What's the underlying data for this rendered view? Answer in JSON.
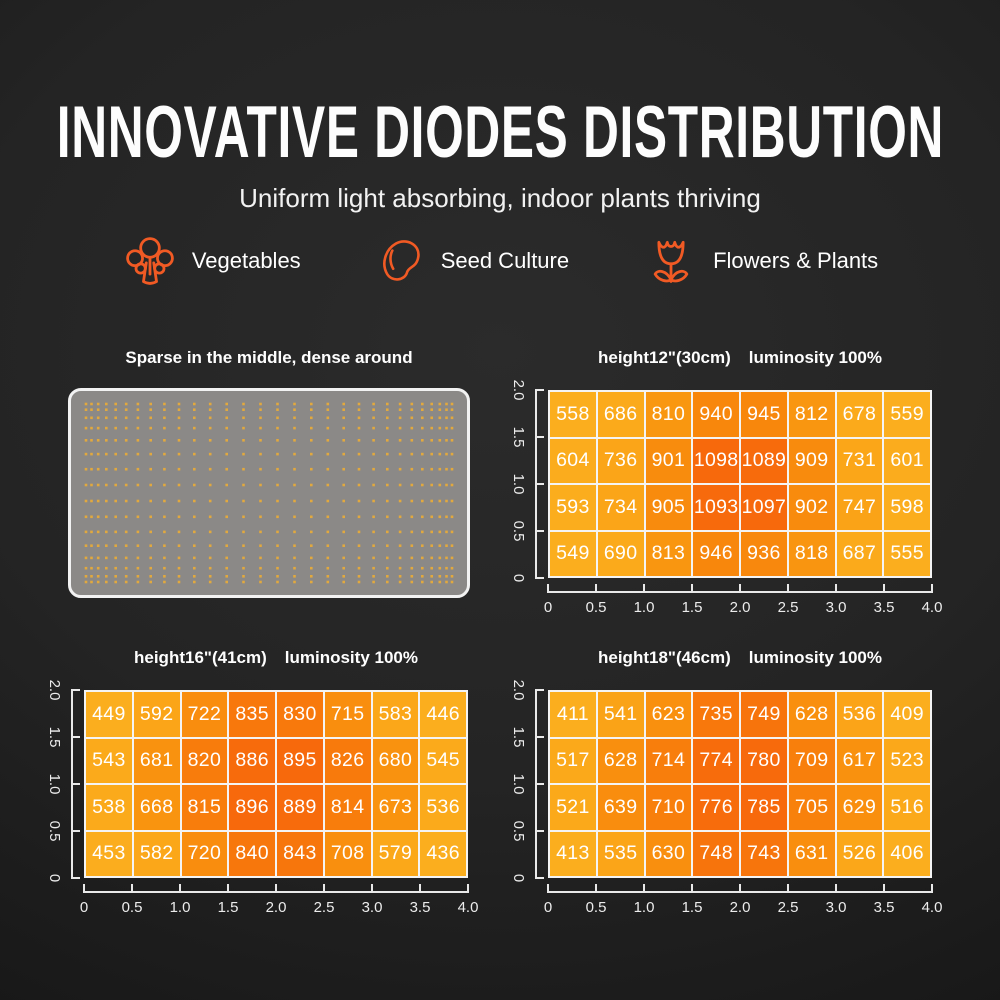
{
  "theme": {
    "accent_orange": "#F15A24",
    "cell_text": "#FFFFFF",
    "grid_line": "#F4F4F4",
    "board_bg": "#8B8987",
    "board_border": "#F2F2F2",
    "dot_color": "#E2A93E",
    "heat_stops": [
      [
        0,
        "#FBAE1E"
      ],
      [
        0.3,
        "#FBA91A"
      ],
      [
        0.5,
        "#F9940F"
      ],
      [
        0.75,
        "#F8850C"
      ],
      [
        1,
        "#F7690C"
      ]
    ]
  },
  "header": {
    "title": "INNOVATIVE DIODES DISTRIBUTION",
    "subtitle": "Uniform light absorbing, indoor plants thriving"
  },
  "features": [
    {
      "icon": "broccoli-icon",
      "label": "Vegetables"
    },
    {
      "icon": "seed-icon",
      "label": "Seed Culture"
    },
    {
      "icon": "tulip-icon",
      "label": "Flowers & Plants"
    }
  ],
  "board_panel": {
    "title": "Sparse in the middle, dense around"
  },
  "chart_data": [
    {
      "type": "heatmap",
      "title_height": "height12\"(30cm)",
      "title_lum": "luminosity 100%",
      "x_ticks": [
        "0",
        "0.5",
        "1.0",
        "1.5",
        "2.0",
        "2.5",
        "3.0",
        "3.5",
        "4.0"
      ],
      "y_ticks": [
        "2.0",
        "1.5",
        "1.0",
        "0.5",
        "0"
      ],
      "x_range": [
        0,
        4.0
      ],
      "y_range": [
        0,
        2.0
      ],
      "rows": [
        [
          558,
          686,
          810,
          940,
          945,
          812,
          678,
          559
        ],
        [
          604,
          736,
          901,
          1098,
          1089,
          909,
          731,
          601
        ],
        [
          593,
          734,
          905,
          1093,
          1097,
          902,
          747,
          598
        ],
        [
          549,
          690,
          813,
          946,
          936,
          818,
          687,
          555
        ]
      ]
    },
    {
      "type": "heatmap",
      "title_height": "height16\"(41cm)",
      "title_lum": "luminosity 100%",
      "x_ticks": [
        "0",
        "0.5",
        "1.0",
        "1.5",
        "2.0",
        "2.5",
        "3.0",
        "3.5",
        "4.0"
      ],
      "y_ticks": [
        "2.0",
        "1.5",
        "1.0",
        "0.5",
        "0"
      ],
      "x_range": [
        0,
        4.0
      ],
      "y_range": [
        0,
        2.0
      ],
      "rows": [
        [
          449,
          592,
          722,
          835,
          830,
          715,
          583,
          446
        ],
        [
          543,
          681,
          820,
          886,
          895,
          826,
          680,
          545
        ],
        [
          538,
          668,
          815,
          896,
          889,
          814,
          673,
          536
        ],
        [
          453,
          582,
          720,
          840,
          843,
          708,
          579,
          436
        ]
      ]
    },
    {
      "type": "heatmap",
      "title_height": "height18\"(46cm)",
      "title_lum": "luminosity 100%",
      "x_ticks": [
        "0",
        "0.5",
        "1.0",
        "1.5",
        "2.0",
        "2.5",
        "3.0",
        "3.5",
        "4.0"
      ],
      "y_ticks": [
        "2.0",
        "1.5",
        "1.0",
        "0.5",
        "0"
      ],
      "x_range": [
        0,
        4.0
      ],
      "y_range": [
        0,
        2.0
      ],
      "rows": [
        [
          411,
          541,
          623,
          735,
          749,
          628,
          536,
          409
        ],
        [
          517,
          628,
          714,
          774,
          780,
          709,
          617,
          523
        ],
        [
          521,
          639,
          710,
          776,
          785,
          705,
          629,
          516
        ],
        [
          413,
          535,
          630,
          748,
          743,
          631,
          526,
          406
        ]
      ]
    }
  ]
}
